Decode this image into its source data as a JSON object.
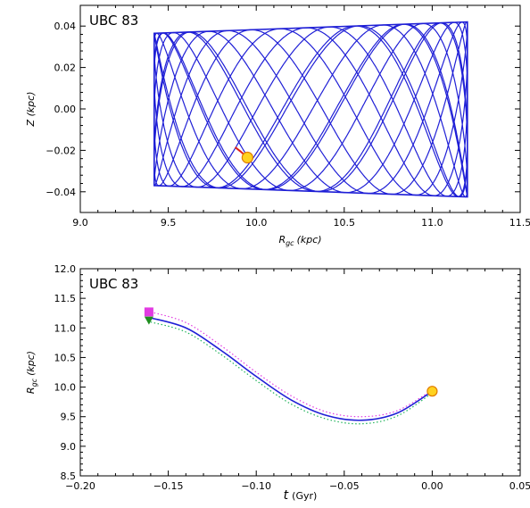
{
  "chart_data": [
    {
      "type": "line",
      "panel_label": "UBC 83",
      "xlabel": "R_gc (kpc)",
      "xlabel_main": "R",
      "xlabel_sub": "gc",
      "xlabel_unit": "(kpc)",
      "ylabel": "Z (kpc)",
      "xlim": [
        9.0,
        11.5
      ],
      "ylim": [
        -0.05,
        0.05
      ],
      "x_ticks": [
        9.0,
        9.5,
        10.0,
        10.5,
        11.0,
        11.5
      ],
      "x_tick_labels": [
        "9.0",
        "9.5",
        "10.0",
        "10.5",
        "11.0",
        "11.5"
      ],
      "y_ticks": [
        -0.04,
        -0.02,
        0.0,
        0.02,
        0.04
      ],
      "y_tick_labels": [
        "−0.04",
        "−0.02",
        "0.00",
        "0.02",
        "0.04"
      ],
      "grid": false,
      "series": [
        {
          "kind": "orbit",
          "color": "#1f1fd6",
          "r_min": 9.42,
          "r_max": 11.2,
          "z_max": 0.0375,
          "z_top_left": 0.0365,
          "z_top_right": 0.042,
          "z_bottom_left": -0.037,
          "z_bottom_right": -0.0425
        },
        {
          "kind": "trail",
          "color": "#e0201a",
          "x": [
            9.88,
            9.91,
            9.95
          ],
          "y": [
            -0.0185,
            -0.0205,
            -0.0235
          ]
        },
        {
          "kind": "marker",
          "marker": "circle",
          "color": "#ffd21f",
          "edge": "#e07b00",
          "x": [
            9.95
          ],
          "y": [
            -0.0235
          ]
        }
      ]
    },
    {
      "type": "line",
      "panel_label": "UBC 83",
      "xlabel": "t (Gyr)",
      "xlabel_main": "t",
      "xlabel_unit": "(Gyr)",
      "ylabel": "R_gc (kpc)",
      "ylabel_main": "R",
      "ylabel_sub": "gc",
      "ylabel_unit": "(kpc)",
      "xlim": [
        -0.2,
        0.05
      ],
      "ylim": [
        8.5,
        12.0
      ],
      "x_ticks": [
        -0.2,
        -0.15,
        -0.1,
        -0.05,
        0.0,
        0.05
      ],
      "x_tick_labels": [
        "−0.20",
        "−0.15",
        "−0.10",
        "−0.05",
        "0.00",
        "0.05"
      ],
      "y_ticks": [
        8.5,
        9.0,
        9.5,
        10.0,
        10.5,
        11.0,
        11.5,
        12.0
      ],
      "y_tick_labels": [
        "8.5",
        "9.0",
        "9.5",
        "10.0",
        "10.5",
        "11.0",
        "11.5",
        "12.0"
      ],
      "grid": false,
      "series": [
        {
          "kind": "curve",
          "style": "solid",
          "color": "#1f1fd6",
          "x": [
            -0.16,
            -0.14,
            -0.12,
            -0.1,
            -0.08,
            -0.06,
            -0.04,
            -0.02,
            0.0
          ],
          "y": [
            11.17,
            11.0,
            10.62,
            10.18,
            9.78,
            9.52,
            9.44,
            9.56,
            9.93
          ]
        },
        {
          "kind": "curve",
          "style": "dotted",
          "color": "#e23be2",
          "x": [
            -0.16,
            -0.14,
            -0.12,
            -0.1,
            -0.08,
            -0.06,
            -0.04,
            -0.02,
            0.0
          ],
          "y": [
            11.27,
            11.09,
            10.7,
            10.25,
            9.85,
            9.58,
            9.5,
            9.6,
            9.95
          ]
        },
        {
          "kind": "curve",
          "style": "dotted",
          "color": "#1fb35a",
          "x": [
            -0.16,
            -0.14,
            -0.12,
            -0.1,
            -0.08,
            -0.06,
            -0.04,
            -0.02,
            0.0
          ],
          "y": [
            11.1,
            10.93,
            10.55,
            10.11,
            9.71,
            9.46,
            9.38,
            9.51,
            9.9
          ]
        },
        {
          "kind": "marker",
          "marker": "square",
          "color": "#e23be2",
          "x": [
            -0.161
          ],
          "y": [
            11.27
          ]
        },
        {
          "kind": "marker",
          "marker": "triangle-down",
          "color": "#1f8f1f",
          "x": [
            -0.161
          ],
          "y": [
            11.13
          ]
        },
        {
          "kind": "marker",
          "marker": "circle",
          "color": "#ffd21f",
          "edge": "#e07b00",
          "x": [
            0.0
          ],
          "y": [
            9.93
          ]
        }
      ]
    }
  ]
}
